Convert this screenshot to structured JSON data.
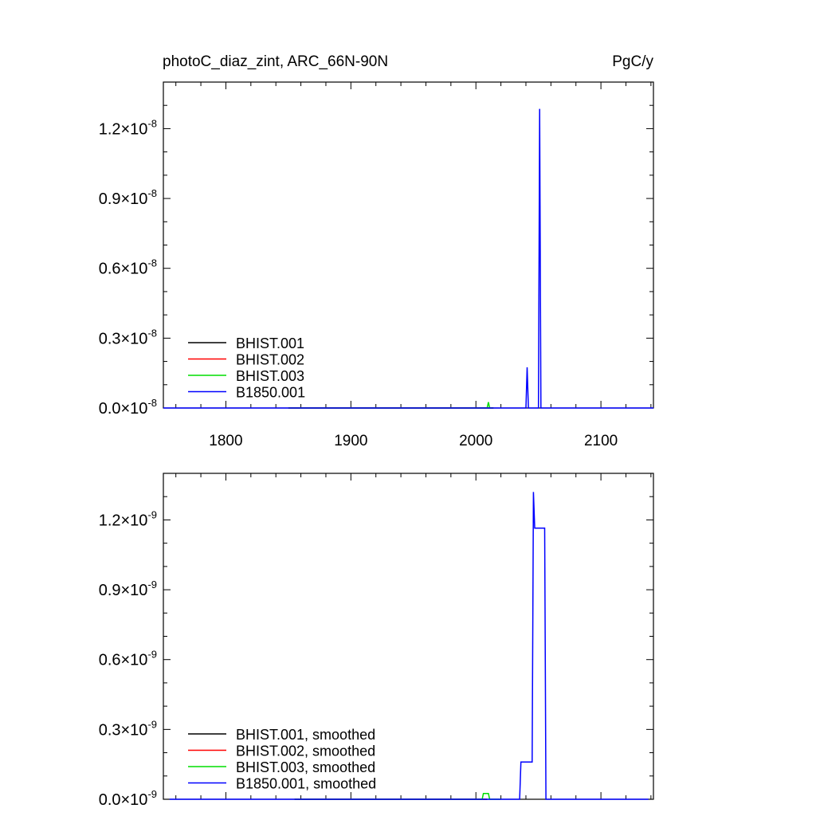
{
  "header": {
    "title": "photoC_diaz_zint, ARC_66N-90N",
    "units": "PgC/y"
  },
  "colors": {
    "BHIST.001": "#000000",
    "BHIST.002": "#ff0000",
    "BHIST.003": "#00dd00",
    "B1850.001": "#0000ff"
  },
  "chart_data": [
    {
      "type": "line",
      "title": "photoC_diaz_zint, ARC_66N-90N",
      "ylabel": "PgC/y",
      "xlim": [
        1750,
        2142
      ],
      "ylim": [
        0,
        1.4e-08
      ],
      "x_ticks": [
        1800,
        1900,
        2000,
        2100
      ],
      "x_tick_labels": [
        "1800",
        "1900",
        "2000",
        "2100"
      ],
      "y_ticks": [
        0,
        3e-09,
        6e-09,
        9e-09,
        1.2e-08
      ],
      "y_tick_labels": [
        {
          "m": "0.0",
          "e": "-8"
        },
        {
          "m": "0.3",
          "e": "-8"
        },
        {
          "m": "0.6",
          "e": "-8"
        },
        {
          "m": "0.9",
          "e": "-8"
        },
        {
          "m": "1.2",
          "e": "-8"
        }
      ],
      "legend_position": "bottom-left",
      "series": [
        {
          "name": "BHIST.001",
          "x": [
            1850,
            2014
          ],
          "y": [
            0,
            0
          ]
        },
        {
          "name": "BHIST.002",
          "x": [
            1850,
            2014
          ],
          "y": [
            0,
            0
          ]
        },
        {
          "name": "BHIST.003",
          "x": [
            1850,
            2009,
            2010,
            2011,
            2014
          ],
          "y": [
            0,
            0,
            2.5e-10,
            0,
            0
          ]
        },
        {
          "name": "B1850.001",
          "x": [
            1750,
            2040,
            2041,
            2042,
            2050,
            2051,
            2052,
            2142
          ],
          "y": [
            0,
            0,
            1.75e-09,
            0,
            0,
            1.285e-08,
            0,
            0
          ]
        }
      ]
    },
    {
      "type": "line",
      "xlim": [
        1750,
        2142
      ],
      "ylim": [
        0,
        1.4e-09
      ],
      "x_ticks": [
        1800,
        1900,
        2000,
        2100
      ],
      "y_ticks": [
        0,
        3e-10,
        6e-10,
        9e-10,
        1.2e-09
      ],
      "y_tick_labels": [
        {
          "m": "0.0",
          "e": "-9"
        },
        {
          "m": "0.3",
          "e": "-9"
        },
        {
          "m": "0.6",
          "e": "-9"
        },
        {
          "m": "0.9",
          "e": "-9"
        },
        {
          "m": "1.2",
          "e": "-9"
        }
      ],
      "legend_position": "bottom-left",
      "series": [
        {
          "name": "BHIST.001, smoothed",
          "x": [
            1855,
            2009
          ],
          "y": [
            0,
            0
          ]
        },
        {
          "name": "BHIST.002, smoothed",
          "x": [
            1855,
            2009
          ],
          "y": [
            0,
            0
          ]
        },
        {
          "name": "BHIST.003, smoothed",
          "x": [
            1855,
            2005,
            2006,
            2010,
            2011,
            2020
          ],
          "y": [
            0,
            0,
            2.5e-11,
            2.5e-11,
            0,
            0
          ]
        },
        {
          "name": "B1850.001, smoothed",
          "x": [
            1755,
            2035,
            2036,
            2045,
            2046,
            2047,
            2048,
            2055,
            2056,
            2057,
            2138
          ],
          "y": [
            0,
            0,
            1.6e-10,
            1.6e-10,
            1.32e-09,
            1.165e-09,
            1.165e-09,
            1.165e-09,
            0,
            0,
            0
          ]
        }
      ]
    }
  ]
}
